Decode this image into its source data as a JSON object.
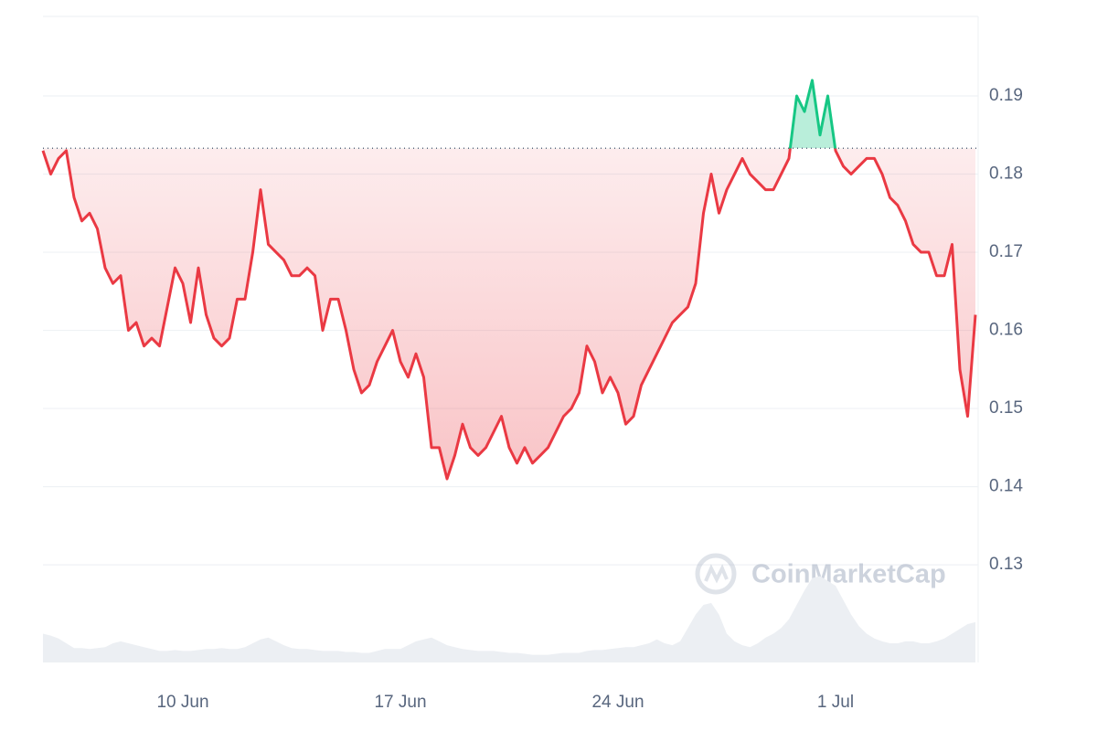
{
  "chart_data": {
    "type": "line",
    "watermark": "CoinMarketCap",
    "categories": [
      null,
      null,
      null,
      null,
      null,
      null,
      null,
      null,
      null,
      null,
      null,
      null,
      null,
      null,
      null,
      null,
      null,
      null,
      "10 Jun",
      null,
      null,
      null,
      null,
      null,
      null,
      null,
      null,
      null,
      null,
      null,
      null,
      null,
      null,
      null,
      null,
      null,
      null,
      null,
      null,
      null,
      null,
      null,
      null,
      null,
      null,
      null,
      "17 Jun",
      null,
      null,
      null,
      null,
      null,
      null,
      null,
      null,
      null,
      null,
      null,
      null,
      null,
      null,
      null,
      null,
      null,
      null,
      null,
      null,
      null,
      null,
      null,
      null,
      null,
      null,
      null,
      "24 Jun",
      null,
      null,
      null,
      null,
      null,
      null,
      null,
      null,
      null,
      null,
      null,
      null,
      null,
      null,
      null,
      null,
      null,
      null,
      null,
      null,
      null,
      null,
      null,
      null,
      null,
      null,
      null,
      "1 Jul",
      null,
      null,
      null,
      null,
      null,
      null,
      null,
      null,
      null,
      null,
      null,
      null,
      null,
      null,
      null,
      null,
      null,
      null
    ],
    "values": [
      0.183,
      0.18,
      0.182,
      0.183,
      0.177,
      0.174,
      0.175,
      0.173,
      0.168,
      0.166,
      0.167,
      0.16,
      0.161,
      0.158,
      0.159,
      0.158,
      0.163,
      0.168,
      0.166,
      0.161,
      0.168,
      0.162,
      0.159,
      0.158,
      0.159,
      0.164,
      0.164,
      0.17,
      0.178,
      0.171,
      0.17,
      0.169,
      0.167,
      0.167,
      0.168,
      0.167,
      0.16,
      0.164,
      0.164,
      0.16,
      0.155,
      0.152,
      0.153,
      0.156,
      0.158,
      0.16,
      0.156,
      0.154,
      0.157,
      0.154,
      0.145,
      0.145,
      0.141,
      0.144,
      0.148,
      0.145,
      0.144,
      0.145,
      0.147,
      0.149,
      0.145,
      0.143,
      0.145,
      0.143,
      0.144,
      0.145,
      0.147,
      0.149,
      0.15,
      0.152,
      0.158,
      0.156,
      0.152,
      0.154,
      0.152,
      0.148,
      0.149,
      0.153,
      0.155,
      0.157,
      0.159,
      0.161,
      0.162,
      0.163,
      0.166,
      0.175,
      0.18,
      0.175,
      0.178,
      0.18,
      0.182,
      0.18,
      0.179,
      0.178,
      0.178,
      0.18,
      0.182,
      0.19,
      0.188,
      0.192,
      0.185,
      0.19,
      0.183,
      0.181,
      0.18,
      0.181,
      0.182,
      0.182,
      0.18,
      0.177,
      0.176,
      0.174,
      0.171,
      0.17,
      0.17,
      0.167,
      0.167,
      0.171,
      0.155,
      0.149,
      0.162
    ],
    "baseline": 0.1833,
    "up_color": "#16c784",
    "down_color": "#ea3943",
    "ylim": [
      0.1175,
      0.2
    ],
    "yticks": [
      0.13,
      0.14,
      0.15,
      0.16,
      0.17,
      0.18,
      0.19
    ],
    "grid": true,
    "volume": {
      "color": "#eceff3",
      "lim": [
        0,
        100
      ],
      "values": [
        30,
        28,
        25,
        20,
        15,
        15,
        14,
        15,
        16,
        20,
        22,
        20,
        18,
        16,
        14,
        12,
        12,
        13,
        12,
        12,
        13,
        14,
        14,
        15,
        14,
        14,
        16,
        20,
        24,
        26,
        22,
        18,
        15,
        14,
        14,
        13,
        12,
        12,
        12,
        11,
        11,
        10,
        10,
        12,
        14,
        14,
        14,
        18,
        22,
        24,
        26,
        22,
        18,
        16,
        14,
        13,
        12,
        12,
        12,
        11,
        10,
        10,
        9,
        8,
        8,
        8,
        9,
        10,
        10,
        10,
        12,
        13,
        13,
        14,
        15,
        16,
        16,
        18,
        20,
        24,
        20,
        18,
        22,
        36,
        50,
        60,
        62,
        50,
        30,
        22,
        18,
        16,
        20,
        26,
        30,
        36,
        45,
        60,
        75,
        88,
        90,
        85,
        80,
        65,
        50,
        38,
        30,
        25,
        22,
        20,
        20,
        22,
        22,
        20,
        20,
        22,
        25,
        30,
        35,
        40,
        42
      ]
    }
  }
}
